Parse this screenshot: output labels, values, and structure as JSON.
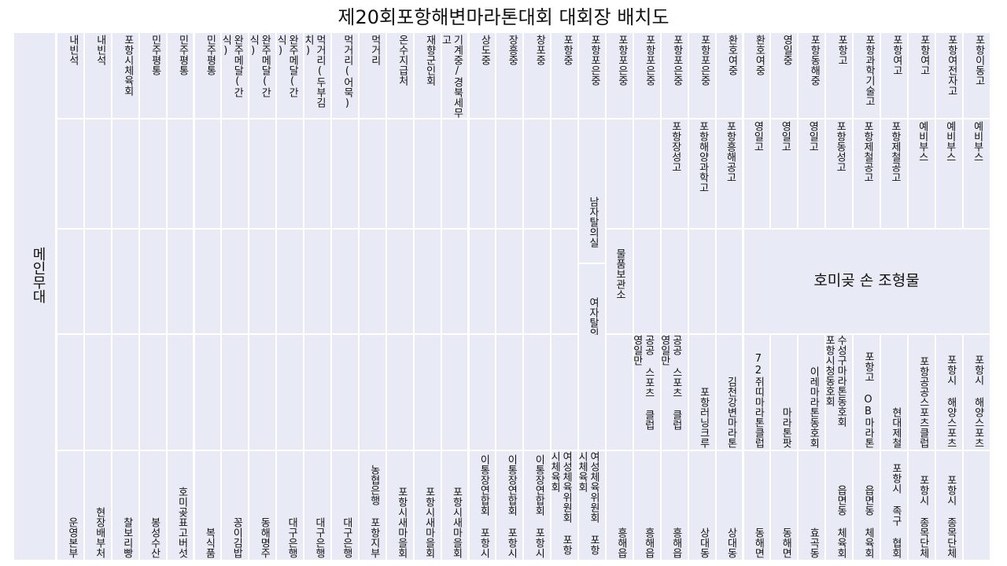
{
  "title": "제20회포항해변마라톤대회 대회장 배치도",
  "main_stage": "메인무대",
  "sculpture": "호미곶 손 조형물",
  "top_row": [
    "내빈석",
    "내빈석",
    "포항시체육회",
    "민주평통",
    "민주평통",
    "민주평통",
    "완주메달(간식)",
    "완주메달(간식)",
    "완주메달(간식)",
    "먹거리(두부김치)",
    "먹거리(어묵)",
    "먹거리",
    "온수지급처",
    "재향군인회",
    "기계중/경북세무고",
    "상도중",
    "장흥중",
    "창포중",
    "포항중",
    "포항포은중",
    "포항포은중",
    "포항포은중",
    "포항포은중",
    "포항포은중",
    "환호여중",
    "환호여중",
    "영일중",
    "포항동해중",
    "포항고",
    "포항과학기술고",
    "포항여고",
    "포항여고",
    "포항여전자고",
    "포항이동고"
  ],
  "row2": [
    "",
    "",
    "",
    "",
    "",
    "",
    "",
    "",
    "",
    "",
    "",
    "",
    "",
    "",
    "",
    "",
    "",
    "",
    "",
    "",
    "",
    "",
    "포항장성고",
    "포항해양과학고",
    "포항흥해공고",
    "영일고",
    "영일고",
    "영일고",
    "포항동성고",
    "포항제철공고",
    "포항제철공고",
    "예비부스",
    "예비부스",
    "예비부스"
  ],
  "locker_male": "남자탈의실",
  "locker_female": "여자탈의실",
  "storage": "물품보관소",
  "row4": [
    "",
    "",
    "",
    "",
    "",
    "",
    "",
    "",
    "",
    "",
    "",
    "",
    "",
    "",
    "",
    "",
    "",
    "",
    "",
    "",
    "",
    "공공 스포츠 클럽 영일만",
    "공공 스포츠 클럽 영일만",
    "포항러닝크루",
    "김천강변마라톤",
    "72쥐띠마라톤클럽",
    "마라톤팟",
    "이레마라톤동호회",
    "수성구마라톤동호회 포항시청동호회",
    "포항고 OB마라톤",
    "현대제철",
    "포항공공스포츠클럽",
    "포항시 해양스포츠",
    "포항시 해양스포츠"
  ],
  "bottom_row": [
    "운영본부",
    "현장배부처",
    "찰보리빵",
    "봉성수산",
    "호미곶표고버섯",
    "복식품",
    "꽁이김밥",
    "동해명주",
    "대구은행",
    "대구은행",
    "대구은행",
    "농협은행 포항지부",
    "포항시새마을회",
    "포항시새마을회",
    "포항시새마을회",
    "이통장연합회 포항시",
    "이통장연합회 포항시",
    "이통장연합회 포항시",
    "여성체육위원회 포항시체육회",
    "여성체육위원회 포항시체육회",
    "흥해읍",
    "흥해읍",
    "흥해읍",
    "상대동",
    "상대동",
    "동해면",
    "동해면",
    "효곡동",
    "읍면동 체육회",
    "읍면동 체육회",
    "포항시 족구 협회",
    "포항시 종목단체",
    "포항시 종목단체"
  ]
}
